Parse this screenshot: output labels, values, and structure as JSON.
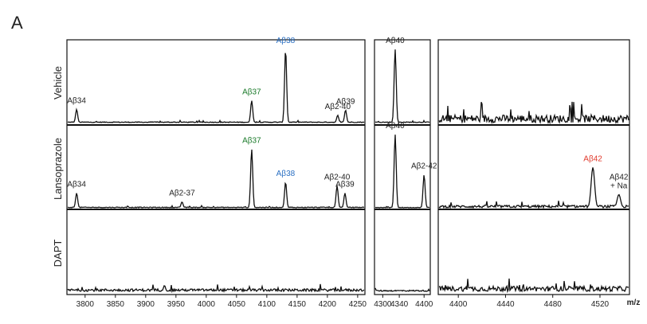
{
  "panel_letter": "A",
  "x_unit": "m/z",
  "chart_data": {
    "type": "line",
    "description_free": true,
    "rows": [
      "Vehicle",
      "Lansoprazole",
      "DAPT"
    ],
    "segments": [
      {
        "xlim": [
          3770,
          4262
        ],
        "ticks": [
          3800,
          3850,
          3900,
          3950,
          4000,
          4050,
          4100,
          4150,
          4200,
          4250
        ]
      },
      {
        "xlim": [
          4280,
          4415
        ],
        "ticks": [
          4300,
          4340,
          4400
        ]
      },
      {
        "xlim": [
          4383,
          4545
        ],
        "ticks": [
          4400,
          4440,
          4480,
          4520
        ]
      }
    ],
    "series": [
      {
        "name": "Vehicle",
        "peaks": [
          {
            "label": "Aβ34",
            "mz": 3786,
            "rel": 0.18,
            "color": "#222222"
          },
          {
            "label": "Aβ37",
            "mz": 4075,
            "rel": 0.3,
            "color": "#1a7a2a"
          },
          {
            "label": "Aβ38",
            "mz": 4131,
            "rel": 1.0,
            "color": "#2a6fc2"
          },
          {
            "label": "Aβ2-40",
            "mz": 4217,
            "rel": 0.1,
            "color": "#222222"
          },
          {
            "label": "Aβ39",
            "mz": 4230,
            "rel": 0.17,
            "color": "#222222"
          },
          {
            "label": "Aβ40",
            "mz": 4330,
            "rel": 1.0,
            "color": "#222222"
          }
        ],
        "noise": {
          "s1": 0.03,
          "s2": 0.03,
          "s3": 0.3
        }
      },
      {
        "name": "Lansoprazole",
        "peaks": [
          {
            "label": "Aβ34",
            "mz": 3786,
            "rel": 0.2,
            "color": "#222222"
          },
          {
            "label": "Aβ2-37",
            "mz": 3960,
            "rel": 0.08,
            "color": "#222222"
          },
          {
            "label": "Aβ37",
            "mz": 4075,
            "rel": 0.8,
            "color": "#1a7a2a"
          },
          {
            "label": "Aβ38",
            "mz": 4131,
            "rel": 0.35,
            "color": "#2a6fc2"
          },
          {
            "label": "Aβ2-40",
            "mz": 4216,
            "rel": 0.3,
            "color": "#222222"
          },
          {
            "label": "Aβ39",
            "mz": 4229,
            "rel": 0.2,
            "color": "#222222"
          },
          {
            "label": "Aβ40",
            "mz": 4330,
            "rel": 1.0,
            "color": "#222222"
          },
          {
            "label": "Aβ2-42",
            "mz": 4400,
            "rel": 0.45,
            "color": "#222222"
          },
          {
            "label": "Aβ42",
            "mz": 4514,
            "rel": 0.55,
            "color": "#e0392b"
          },
          {
            "label": "Aβ42\n+ Na",
            "mz": 4536,
            "rel": 0.18,
            "color": "#222222"
          }
        ],
        "noise": {
          "s1": 0.03,
          "s2": 0.02,
          "s3": 0.1
        }
      },
      {
        "name": "DAPT",
        "peaks": [
          {
            "label": "",
            "mz": 3931,
            "rel": 0.08,
            "color": "#222222"
          }
        ],
        "noise": {
          "s1": 0.1,
          "s2": 0.05,
          "s3": 0.2
        }
      }
    ]
  }
}
